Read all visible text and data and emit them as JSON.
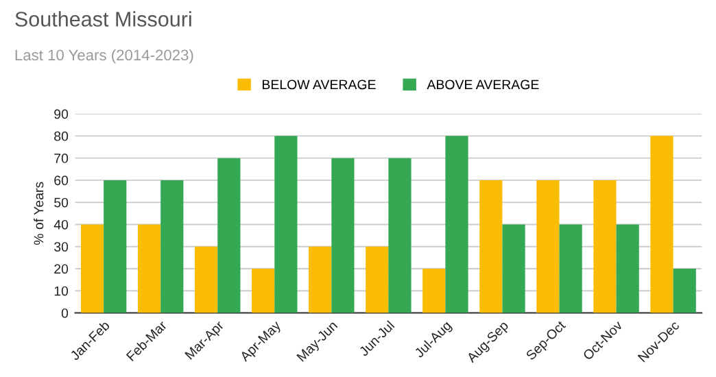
{
  "chart_data": {
    "type": "bar",
    "title": "Southeast Missouri",
    "subtitle": "Last 10 Years (2014-2023)",
    "ylabel": "% of Years",
    "categories": [
      "Jan-Feb",
      "Feb-Mar",
      "Mar-Apr",
      "Apr-May",
      "May-Jun",
      "Jun-Jul",
      "Jul-Aug",
      "Aug-Sep",
      "Sep-Oct",
      "Oct-Nov",
      "Nov-Dec"
    ],
    "series": [
      {
        "name": "BELOW AVERAGE",
        "color": "#fbbc04",
        "values": [
          40,
          40,
          30,
          20,
          30,
          30,
          20,
          60,
          60,
          60,
          80
        ]
      },
      {
        "name": "ABOVE AVERAGE",
        "color": "#34a853",
        "values": [
          60,
          60,
          70,
          80,
          70,
          70,
          80,
          40,
          40,
          40,
          20
        ]
      }
    ],
    "ylim": [
      0,
      90
    ],
    "yticks": [
      0,
      10,
      20,
      30,
      40,
      50,
      60,
      70,
      80,
      90
    ],
    "grid": "y",
    "legend": "top"
  }
}
